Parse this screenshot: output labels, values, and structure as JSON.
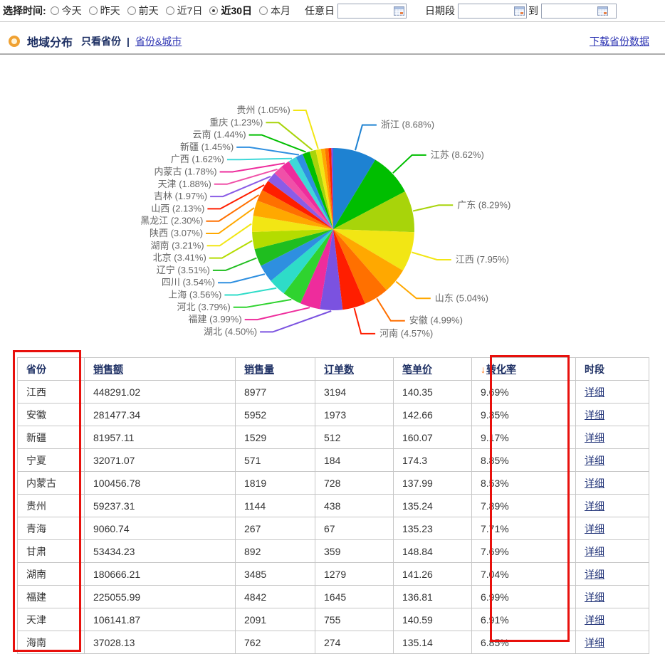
{
  "time_filter": {
    "label": "选择时间:",
    "options": [
      {
        "label": "今天",
        "selected": false
      },
      {
        "label": "昨天",
        "selected": false
      },
      {
        "label": "前天",
        "selected": false
      },
      {
        "label": "近7日",
        "selected": false
      },
      {
        "label": "近30日",
        "selected": true
      },
      {
        "label": "本月",
        "selected": false
      }
    ],
    "any_day_label": "任意日",
    "range_label": "日期段",
    "to_label": "到",
    "date_inputs": [
      "",
      "",
      ""
    ]
  },
  "section": {
    "title": "地域分布",
    "view_current": "只看省份",
    "view_separator": "|",
    "view_alt": "省份&城市",
    "download_link": "下载省份数据"
  },
  "chart_data": {
    "type": "pie",
    "unit": "%",
    "label_format": "name (value%)",
    "slices": [
      {
        "name": "浙江",
        "value": 8.68,
        "color": "#1E82D2"
      },
      {
        "name": "江苏",
        "value": 8.62,
        "color": "#00BE00"
      },
      {
        "name": "广东",
        "value": 8.29,
        "color": "#A8D40A"
      },
      {
        "name": "江西",
        "value": 7.95,
        "color": "#F2E614"
      },
      {
        "name": "山东",
        "value": 5.04,
        "color": "#FFA800"
      },
      {
        "name": "安徽",
        "value": 4.99,
        "color": "#FF7000"
      },
      {
        "name": "河南",
        "value": 4.57,
        "color": "#FF1E00"
      },
      {
        "name": "湖北",
        "value": 4.5,
        "color": "#7B52E0"
      },
      {
        "name": "福建",
        "value": 3.99,
        "color": "#EE2C9C"
      },
      {
        "name": "河北",
        "value": 3.79,
        "color": "#2FD32F"
      },
      {
        "name": "上海",
        "value": 3.56,
        "color": "#2EDCC8"
      },
      {
        "name": "四川",
        "value": 3.54,
        "color": "#2E8FE0"
      },
      {
        "name": "辽宁",
        "value": 3.51,
        "color": "#1FBE1F"
      },
      {
        "name": "北京",
        "value": 3.41,
        "color": "#B4DC00"
      },
      {
        "name": "湖南",
        "value": 3.21,
        "color": "#F2E614"
      },
      {
        "name": "陕西",
        "value": 3.07,
        "color": "#FFA800"
      },
      {
        "name": "黑龙江",
        "value": 2.3,
        "color": "#FF7000"
      },
      {
        "name": "山西",
        "value": 2.13,
        "color": "#FF1E00"
      },
      {
        "name": "吉林",
        "value": 1.97,
        "color": "#8A5CE6"
      },
      {
        "name": "天津",
        "value": 1.88,
        "color": "#F050A8"
      },
      {
        "name": "内蒙古",
        "value": 1.78,
        "color": "#EE2C9C"
      },
      {
        "name": "广西",
        "value": 1.62,
        "color": "#3ED8D8"
      },
      {
        "name": "新疆",
        "value": 1.45,
        "color": "#2E8FE0"
      },
      {
        "name": "云南",
        "value": 1.44,
        "color": "#00BE00"
      },
      {
        "name": "重庆",
        "value": 1.23,
        "color": "#A8D40A"
      },
      {
        "name": "贵州",
        "value": 1.05,
        "color": "#F2E614"
      },
      {
        "name": "",
        "value": 0.8,
        "color": "#FFA800",
        "labeled": false
      },
      {
        "name": "",
        "value": 0.7,
        "color": "#FF7000",
        "labeled": false
      },
      {
        "name": "",
        "value": 0.55,
        "color": "#FF1E00",
        "labeled": false
      },
      {
        "name": "",
        "value": 0.38,
        "color": "#7B52E0",
        "labeled": false
      }
    ]
  },
  "table": {
    "headers": [
      {
        "label": "省份",
        "link": false
      },
      {
        "label": "销售额",
        "link": true
      },
      {
        "label": "销售量",
        "link": true
      },
      {
        "label": "订单数",
        "link": true
      },
      {
        "label": "笔单价",
        "link": true
      },
      {
        "label": "转化率",
        "link": true,
        "sort": "desc",
        "sort_icon": "↓"
      },
      {
        "label": "时段",
        "link": false
      }
    ],
    "action_label": "详细",
    "rows": [
      [
        "江西",
        "448291.02",
        "8977",
        "3194",
        "140.35",
        "9.69%"
      ],
      [
        "安徽",
        "281477.34",
        "5952",
        "1973",
        "142.66",
        "9.35%"
      ],
      [
        "新疆",
        "81957.11",
        "1529",
        "512",
        "160.07",
        "9.17%"
      ],
      [
        "宁夏",
        "32071.07",
        "571",
        "184",
        "174.3",
        "8.85%"
      ],
      [
        "内蒙古",
        "100456.78",
        "1819",
        "728",
        "137.99",
        "8.53%"
      ],
      [
        "贵州",
        "59237.31",
        "1144",
        "438",
        "135.24",
        "7.89%"
      ],
      [
        "青海",
        "9060.74",
        "267",
        "67",
        "135.23",
        "7.71%"
      ],
      [
        "甘肃",
        "53434.23",
        "892",
        "359",
        "148.84",
        "7.69%"
      ],
      [
        "湖南",
        "180666.21",
        "3485",
        "1279",
        "141.26",
        "7.04%"
      ],
      [
        "福建",
        "225055.99",
        "4842",
        "1645",
        "136.81",
        "6.99%"
      ],
      [
        "天津",
        "106141.87",
        "2091",
        "755",
        "140.59",
        "6.91%"
      ],
      [
        "海南",
        "37028.13",
        "762",
        "274",
        "135.14",
        "6.85%"
      ]
    ]
  },
  "colors": {
    "annotation_red": "#E8100C",
    "sort_arrow_orange": "#FF6A00",
    "link_blue": "#2B32B2",
    "table_header_navy": "#1D2F63",
    "section_icon_orange": "#F0A132"
  }
}
